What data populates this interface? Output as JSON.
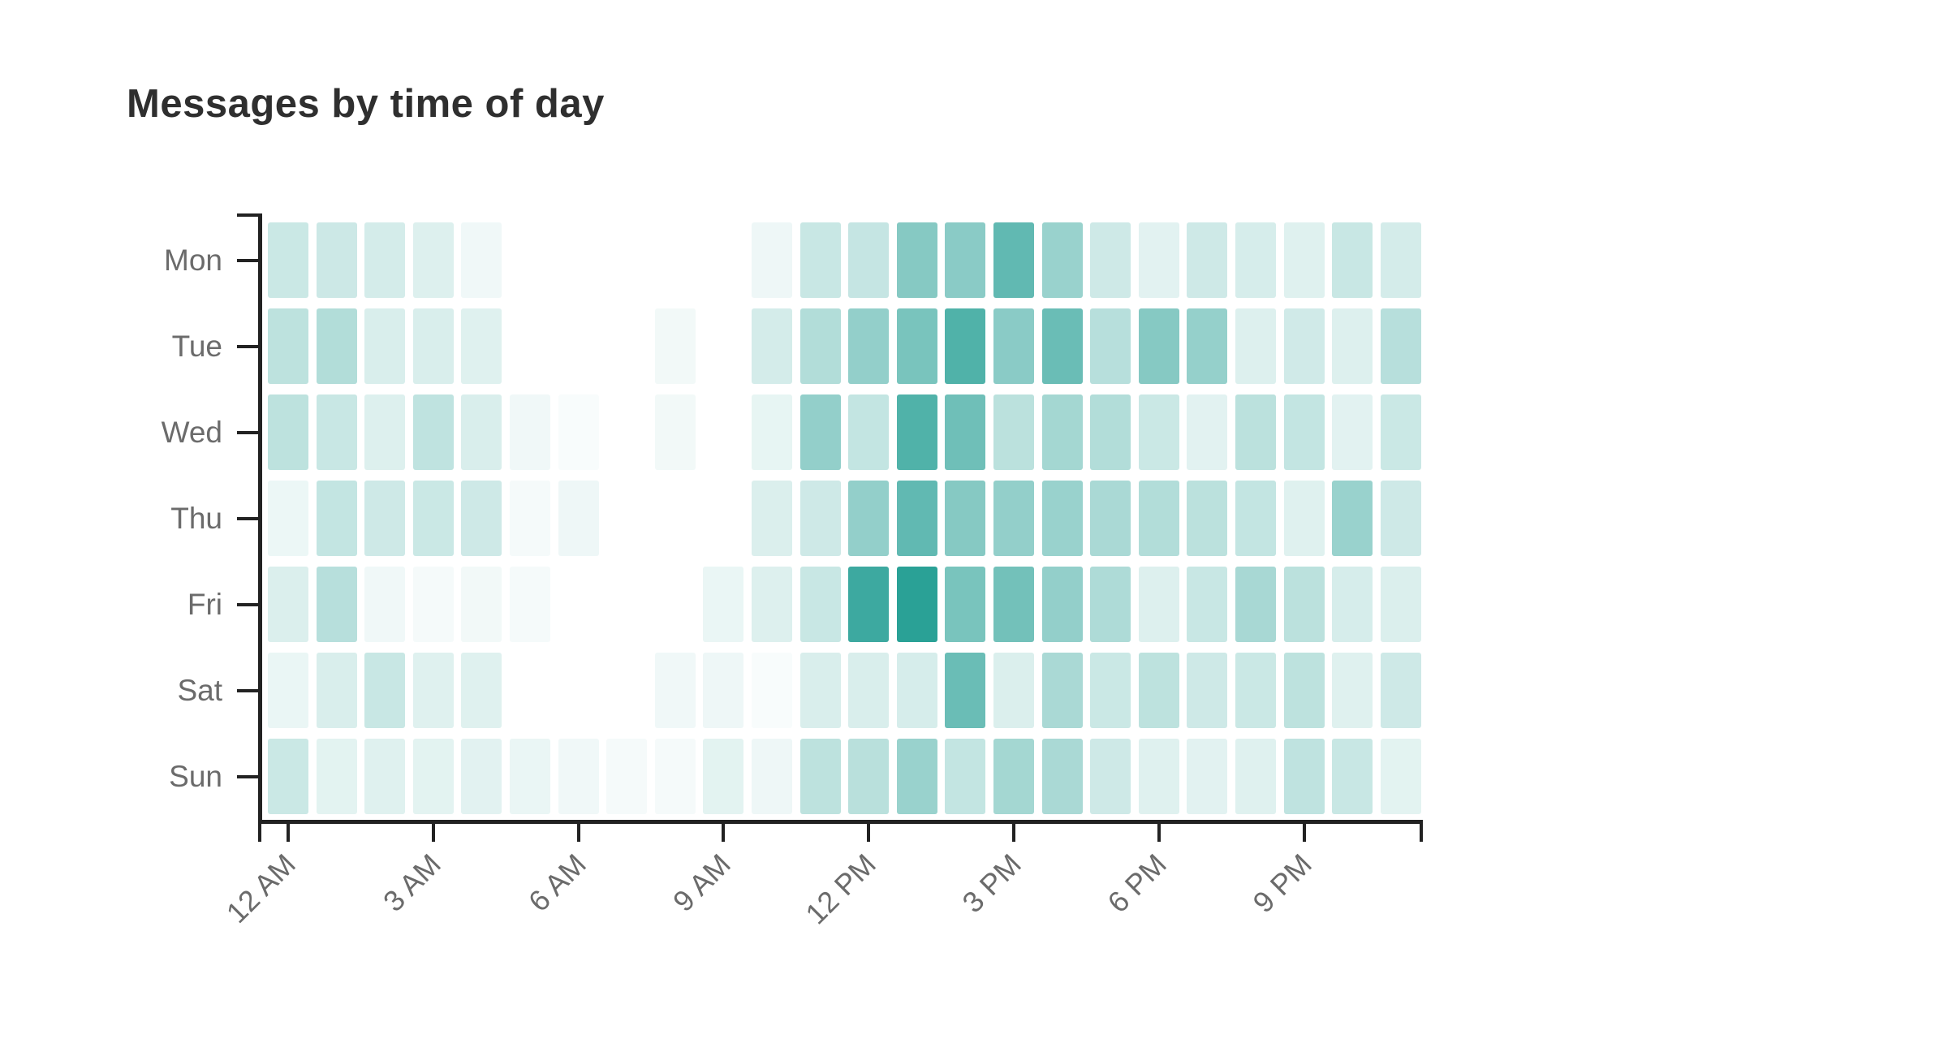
{
  "chart": {
    "title": "Messages by time of day"
  },
  "chart_data": {
    "type": "heatmap",
    "title": "Messages by time of day",
    "xlabel": "",
    "ylabel": "",
    "legend": "none",
    "grid": false,
    "rows": [
      "Mon",
      "Tue",
      "Wed",
      "Thu",
      "Fri",
      "Sat",
      "Sun"
    ],
    "columns_hours": [
      0,
      1,
      2,
      3,
      4,
      5,
      6,
      7,
      8,
      9,
      10,
      11,
      12,
      13,
      14,
      15,
      16,
      17,
      18,
      19,
      20,
      21,
      22,
      23
    ],
    "x_ticks": [
      {
        "hour": 0,
        "label": "12 AM"
      },
      {
        "hour": 3,
        "label": "3 AM"
      },
      {
        "hour": 6,
        "label": "6 AM"
      },
      {
        "hour": 9,
        "label": "9 AM"
      },
      {
        "hour": 12,
        "label": "12 PM"
      },
      {
        "hour": 15,
        "label": "3 PM"
      },
      {
        "hour": 18,
        "label": "6 PM"
      },
      {
        "hour": 21,
        "label": "9 PM"
      }
    ],
    "values_percent_of_peak": [
      [
        25,
        24,
        20,
        16,
        7,
        0,
        0,
        0,
        0,
        0,
        8,
        26,
        27,
        57,
        55,
        74,
        48,
        23,
        14,
        23,
        19,
        15,
        26,
        20
      ],
      [
        31,
        36,
        18,
        18,
        15,
        0,
        0,
        0,
        6,
        0,
        20,
        36,
        51,
        63,
        82,
        55,
        70,
        34,
        57,
        50,
        16,
        22,
        16,
        34
      ],
      [
        31,
        26,
        16,
        30,
        18,
        7,
        3,
        0,
        6,
        0,
        11,
        51,
        28,
        82,
        68,
        32,
        43,
        36,
        25,
        14,
        32,
        28,
        14,
        25
      ],
      [
        9,
        28,
        23,
        25,
        23,
        5,
        8,
        0,
        0,
        0,
        17,
        23,
        51,
        74,
        57,
        51,
        48,
        40,
        36,
        32,
        28,
        15,
        48,
        23
      ],
      [
        17,
        34,
        7,
        5,
        6,
        5,
        0,
        0,
        0,
        10,
        16,
        26,
        91,
        100,
        63,
        66,
        51,
        38,
        16,
        26,
        41,
        32,
        19,
        17
      ],
      [
        10,
        18,
        26,
        15,
        15,
        0,
        0,
        0,
        7,
        8,
        3,
        18,
        18,
        19,
        70,
        17,
        40,
        25,
        31,
        23,
        25,
        31,
        15,
        23
      ],
      [
        25,
        13,
        15,
        13,
        14,
        10,
        7,
        5,
        5,
        13,
        8,
        31,
        33,
        48,
        28,
        43,
        40,
        23,
        15,
        14,
        15,
        30,
        26,
        13
      ]
    ],
    "peak_cell": {
      "row": "Fri",
      "hour": 13
    },
    "colors": {
      "base_teal": "#0d9488",
      "peak_rendered": "#2aa294",
      "empty": "#ffffff",
      "axis": "#222222",
      "labels": "#6b6b6b",
      "title": "#2f2f2f"
    },
    "max_alpha": 0.88
  }
}
